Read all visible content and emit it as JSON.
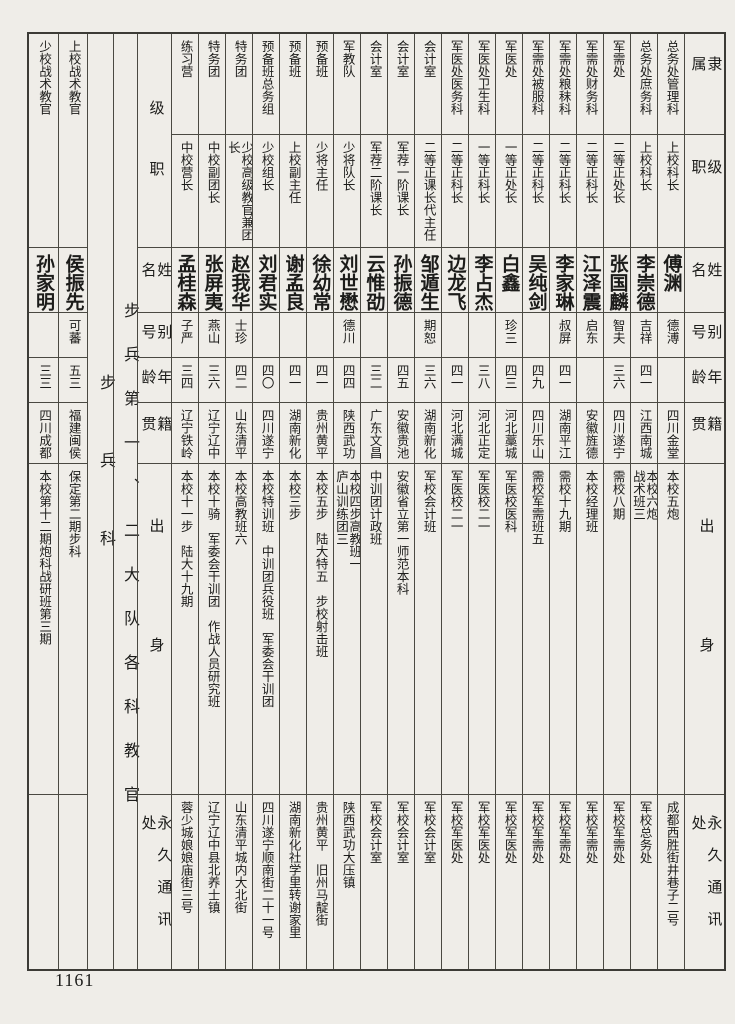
{
  "page_number": "1161",
  "right_section": {
    "headers": {
      "affiliation": "隶属",
      "rank": "级职",
      "name": "姓名",
      "alias": "别号",
      "age": "年龄",
      "native": "籍贯",
      "origin": "出身",
      "address": "永久通讯处"
    },
    "persons": [
      {
        "affiliation": "总务处管理科",
        "rank": "上校科长",
        "name": "傅渊",
        "alias": "德溥",
        "age": "",
        "native": "四川金堂",
        "origin": "本校五炮",
        "address": "成都西胜街井巷子二号"
      },
      {
        "affiliation": "总务处庶务科",
        "rank": "上校科长",
        "name": "李崇德",
        "alias": "吉祥",
        "age": "四一",
        "native": "江西南城",
        "origin": "本校六炮\n战术班三",
        "address": "军校总务处"
      },
      {
        "affiliation": "军需处",
        "rank": "二等正处长",
        "name": "张国麟",
        "alias": "智夫",
        "age": "三六",
        "native": "四川遂宁",
        "origin": "需校八期",
        "address": "军校军需处"
      },
      {
        "affiliation": "军需处财务科",
        "rank": "二等正科长",
        "name": "江泽震",
        "alias": "启东",
        "age": "",
        "native": "安徽旌德",
        "origin": "本校经理班",
        "address": "军校军需处"
      },
      {
        "affiliation": "军需处粮秣科",
        "rank": "二等正科长",
        "name": "李家琳",
        "alias": "叔屏",
        "age": "四一",
        "native": "湖南平江",
        "origin": "需校十九期",
        "address": "军校军需处"
      },
      {
        "affiliation": "军需处被服科",
        "rank": "二等正科长",
        "name": "吴纯剑",
        "alias": "",
        "age": "四九",
        "native": "四川乐山",
        "origin": "需校军需班五",
        "address": "军校军需处"
      },
      {
        "affiliation": "军医处",
        "rank": "一等正处长",
        "name": "白鑫",
        "alias": "珍三",
        "age": "四三",
        "native": "河北藁城",
        "origin": "军医校医科",
        "address": "军校军医处"
      },
      {
        "affiliation": "军医处卫生科",
        "rank": "一等正科长",
        "name": "李占杰",
        "alias": "",
        "age": "三八",
        "native": "河北正定",
        "origin": "军医校二一",
        "address": "军校军医处"
      },
      {
        "affiliation": "军医处医务科",
        "rank": "二等正科长",
        "name": "边龙飞",
        "alias": "",
        "age": "四一",
        "native": "河北满城",
        "origin": "军医校二一",
        "address": "军校军医处"
      },
      {
        "affiliation": "会计室",
        "rank": "二等正课长代主任",
        "name": "邹遁生",
        "alias": "期恕",
        "age": "三六",
        "native": "湖南新化",
        "origin": "军校会计班",
        "address": "军校会计室"
      },
      {
        "affiliation": "会计室",
        "rank": "军荐一阶课长",
        "name": "孙振德",
        "alias": "",
        "age": "四五",
        "native": "安徽贵池",
        "origin": "安徽省立第一师范本科",
        "address": "军校会计室"
      },
      {
        "affiliation": "会计室",
        "rank": "军荐二阶课长",
        "name": "云惟劭",
        "alias": "",
        "age": "三二",
        "native": "广东文昌",
        "origin": "中训团计政班",
        "address": "军校会计室"
      },
      {
        "affiliation": "军教队",
        "rank": "少将队长",
        "name": "刘世懋",
        "alias": "德川",
        "age": "四四",
        "native": "陕西武功",
        "origin": "本校四步高教班一\n庐山训练团三",
        "address": "陕西武功大压镇"
      },
      {
        "affiliation": "预备班",
        "rank": "少将主任",
        "name": "徐幼常",
        "alias": "",
        "age": "四一",
        "native": "贵州黄平",
        "origin": "本校五步　陆大特五　步校射击班",
        "address": "贵州黄平　旧州马靛街"
      },
      {
        "affiliation": "预备班",
        "rank": "上校副主任",
        "name": "谢孟良",
        "alias": "",
        "age": "四一",
        "native": "湖南新化",
        "origin": "本校三步",
        "address": "湖南新化社学里转谢家里"
      },
      {
        "affiliation": "预备班总务组",
        "rank": "少校组长",
        "name": "刘君实",
        "alias": "",
        "age": "四〇",
        "native": "四川遂宁",
        "origin": "本校特训班　中训团兵役班　军委会干训团",
        "address": "四川遂宁顺南街二十一号"
      },
      {
        "affiliation": "特务团",
        "rank": "少校高级教官兼团长",
        "name": "赵我华",
        "alias": "士珍",
        "age": "四二",
        "native": "山东清平",
        "origin": "本校高教班六",
        "address": "山东清平城内大北街"
      },
      {
        "affiliation": "特务团",
        "rank": "中校副团长",
        "name": "张屏夷",
        "alias": "燕山",
        "age": "三六",
        "native": "辽宁辽中",
        "origin": "本校十骑　军委会干训团　作战人员研究班",
        "address": "辽宁辽中县北养士镇"
      },
      {
        "affiliation": "练习营",
        "rank": "中校营长",
        "name": "孟桂森",
        "alias": "子严",
        "age": "三四",
        "native": "辽宁铁岭",
        "origin": "本校十一步　陆大十九期",
        "address": "蓉少城娘娘庙街三号"
      }
    ]
  },
  "left_section": {
    "title": "步兵第一、二大队各科教官",
    "branch": "步兵科",
    "headers": {
      "rank": "级职",
      "name": "姓名",
      "alias": "别号",
      "age": "年龄",
      "native": "籍贯",
      "origin": "出身",
      "address": "永久通讯处"
    },
    "persons": [
      {
        "rank": "上校战术教官",
        "name": "侯振先",
        "alias": "可蕃",
        "age": "五三",
        "native": "福建闽侯",
        "origin": "保定第二期步科",
        "address": ""
      },
      {
        "rank": "少校战术教官",
        "name": "孙家明",
        "alias": "",
        "age": "三三",
        "native": "四川成都",
        "origin": "本校第十二期炮科战研班第三期",
        "address": ""
      }
    ]
  }
}
